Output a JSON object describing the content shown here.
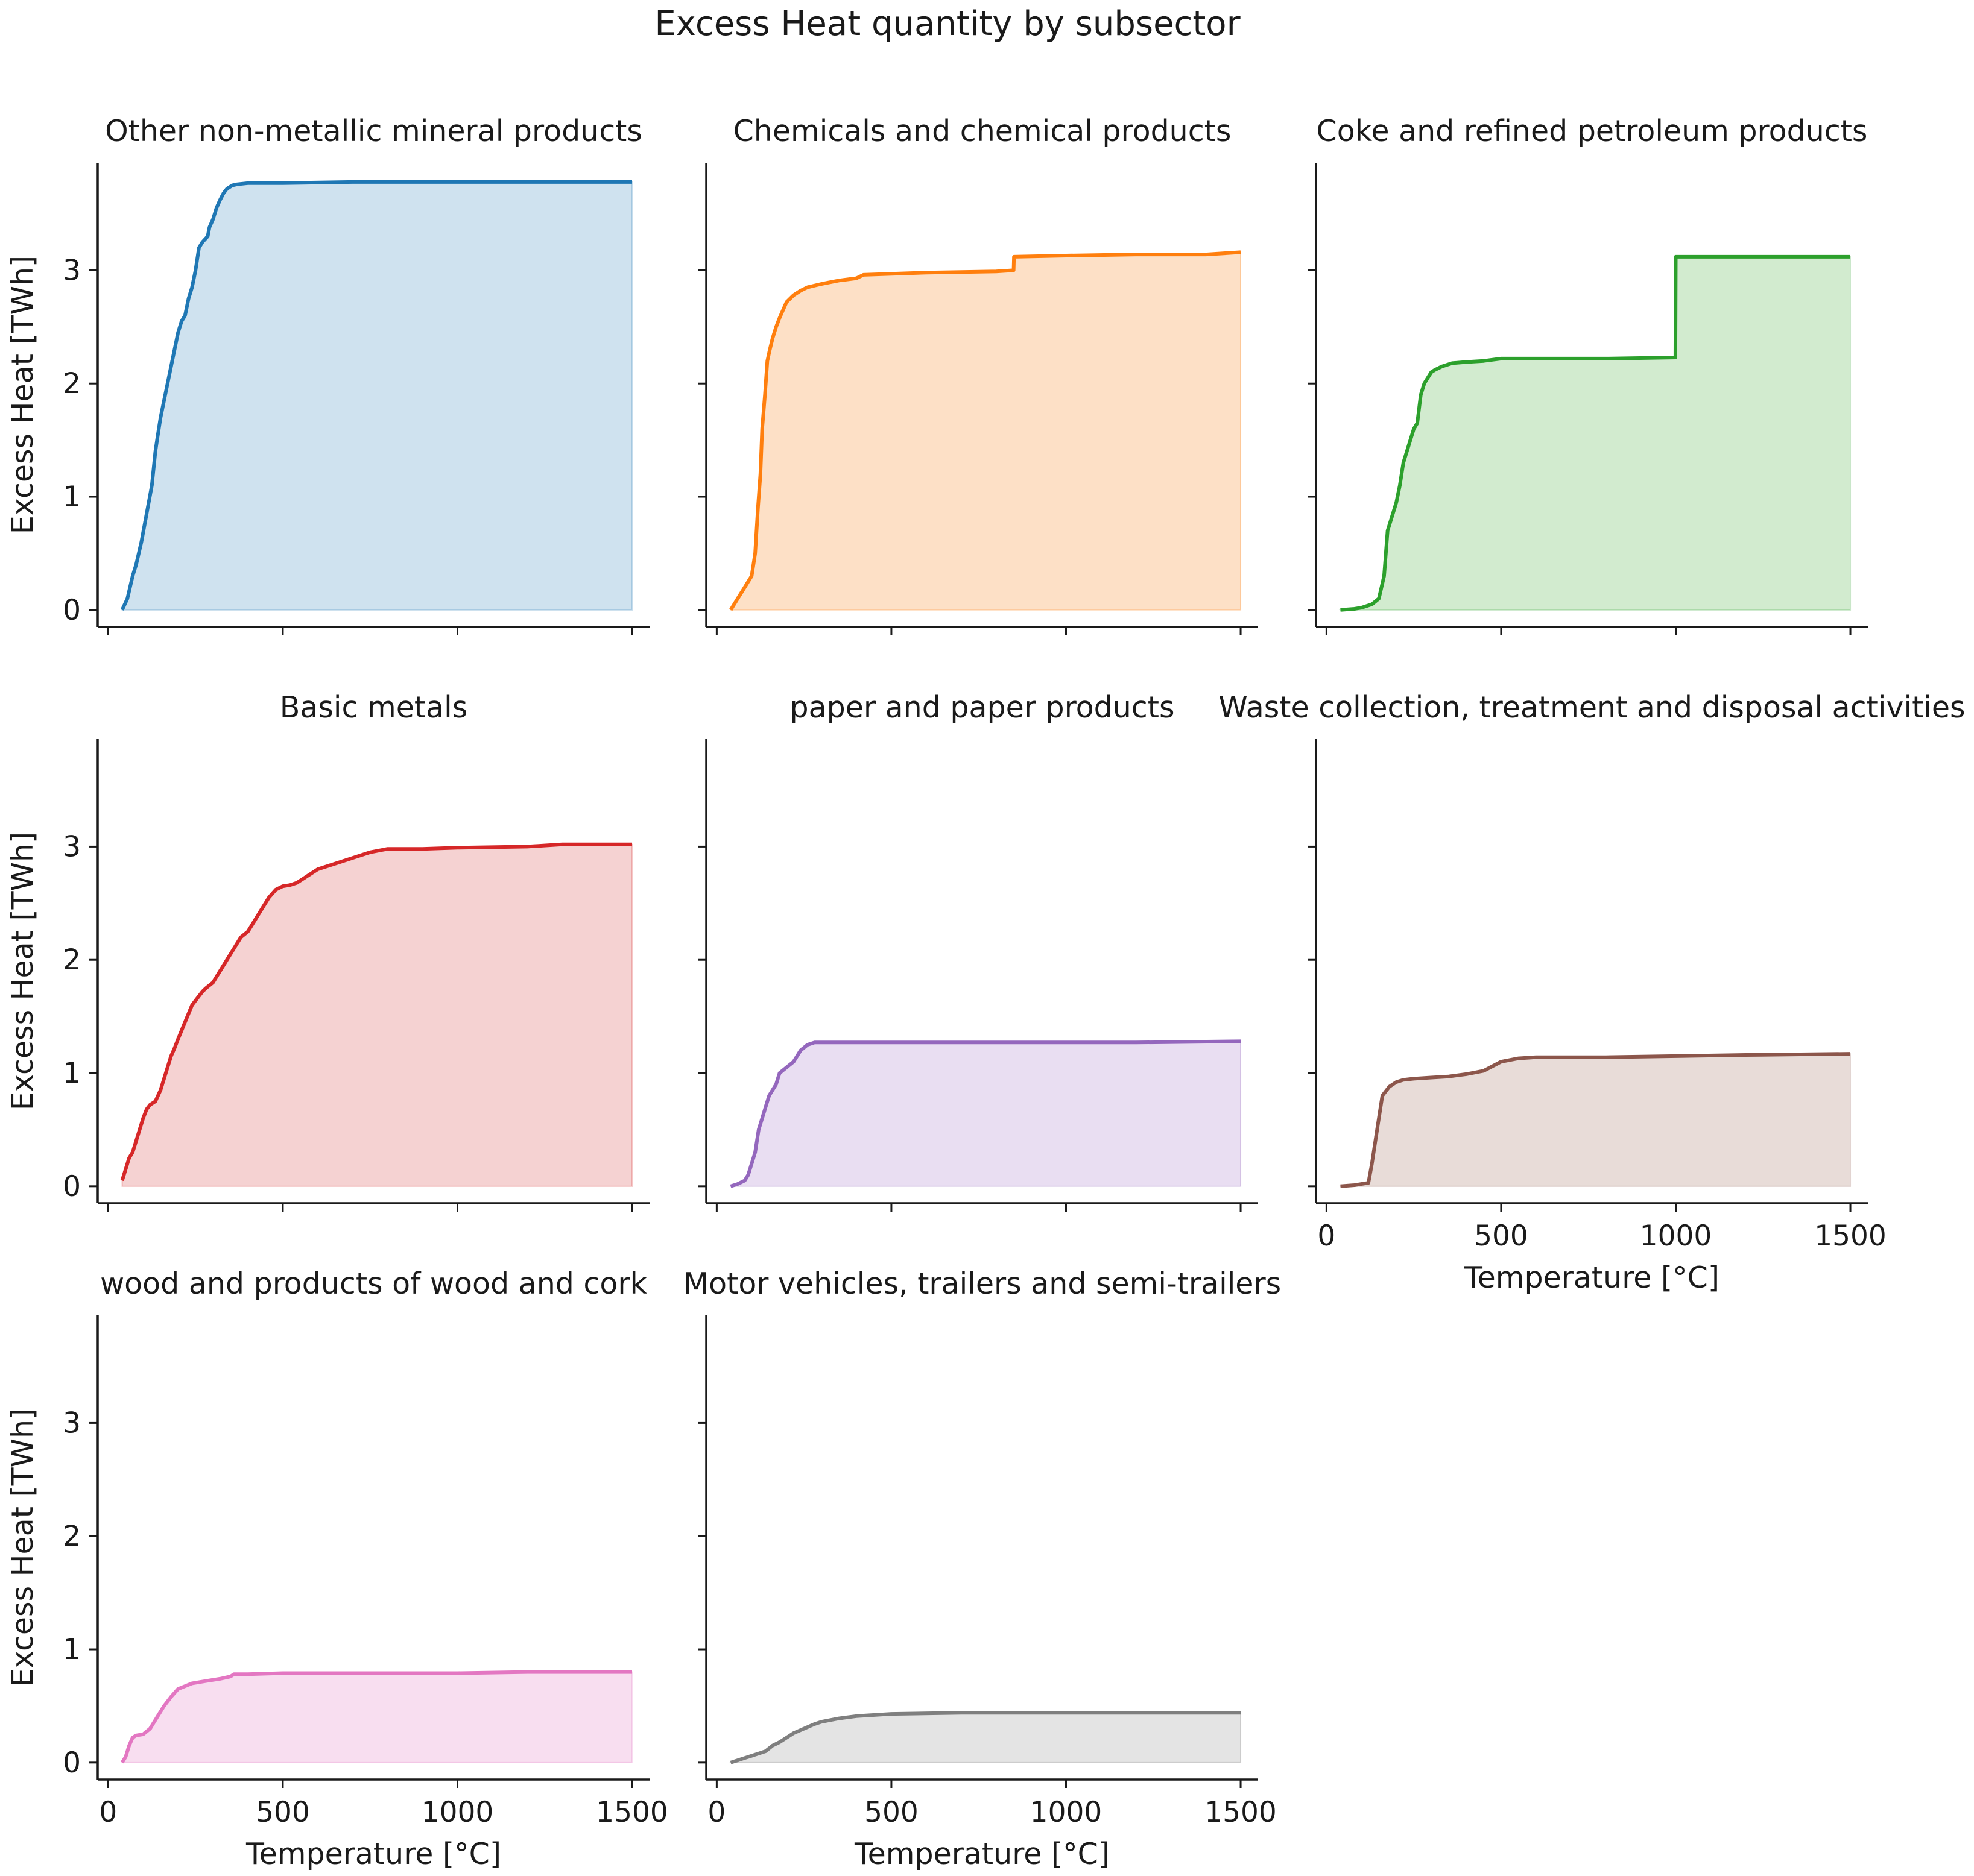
{
  "figure_title": "Excess Heat quantity by subsector",
  "chart_data": [
    {
      "type": "area",
      "title": "Other non-metallic mineral products",
      "color": "#1f77b4",
      "fill": "#cfe2ef",
      "xlabel": "",
      "ylabel": "Excess Heat [TWh]",
      "xlim": [
        -30,
        1550
      ],
      "ylim": [
        -0.15,
        3.95
      ],
      "xticks": [
        0,
        500,
        1000,
        1500
      ],
      "yticks": [
        0,
        1,
        2,
        3
      ],
      "show_xticklabels": false,
      "show_yticklabels": true,
      "x": [
        40,
        55,
        70,
        80,
        95,
        110,
        125,
        135,
        140,
        150,
        160,
        170,
        180,
        190,
        200,
        210,
        220,
        230,
        240,
        250,
        260,
        270,
        285,
        290,
        300,
        310,
        320,
        330,
        340,
        355,
        370,
        400,
        500,
        700,
        1000,
        1500
      ],
      "y": [
        0.0,
        0.1,
        0.3,
        0.4,
        0.6,
        0.85,
        1.1,
        1.4,
        1.5,
        1.7,
        1.85,
        2.0,
        2.15,
        2.3,
        2.45,
        2.55,
        2.6,
        2.75,
        2.85,
        3.0,
        3.2,
        3.25,
        3.3,
        3.38,
        3.45,
        3.55,
        3.62,
        3.68,
        3.72,
        3.75,
        3.76,
        3.77,
        3.77,
        3.78,
        3.78,
        3.78
      ]
    },
    {
      "type": "area",
      "title": "Chemicals and chemical products",
      "color": "#ff7f0e",
      "fill": "#fde0c6",
      "xlabel": "",
      "ylabel": "",
      "xlim": [
        -30,
        1550
      ],
      "ylim": [
        -0.15,
        3.95
      ],
      "xticks": [
        0,
        500,
        1000,
        1500
      ],
      "yticks": [
        0,
        1,
        2,
        3
      ],
      "show_xticklabels": false,
      "show_yticklabels": false,
      "x": [
        40,
        60,
        80,
        100,
        110,
        118,
        125,
        130,
        138,
        145,
        152,
        160,
        170,
        180,
        190,
        200,
        220,
        240,
        260,
        300,
        350,
        400,
        420,
        600,
        800,
        850,
        851,
        1000,
        1200,
        1400,
        1500
      ],
      "y": [
        0.0,
        0.1,
        0.2,
        0.3,
        0.5,
        0.9,
        1.2,
        1.6,
        1.9,
        2.2,
        2.3,
        2.4,
        2.5,
        2.58,
        2.65,
        2.72,
        2.78,
        2.82,
        2.85,
        2.88,
        2.91,
        2.93,
        2.96,
        2.98,
        2.99,
        3.0,
        3.12,
        3.13,
        3.14,
        3.14,
        3.16
      ]
    },
    {
      "type": "area",
      "title": "Coke and refined petroleum products",
      "color": "#2ca02c",
      "fill": "#d2ebcf",
      "xlabel": "",
      "ylabel": "",
      "xlim": [
        -30,
        1550
      ],
      "ylim": [
        -0.15,
        3.95
      ],
      "xticks": [
        0,
        500,
        1000,
        1500
      ],
      "yticks": [
        0,
        1,
        2,
        3
      ],
      "show_xticklabels": false,
      "show_yticklabels": false,
      "x": [
        40,
        80,
        100,
        130,
        150,
        165,
        175,
        190,
        200,
        210,
        220,
        235,
        250,
        260,
        270,
        280,
        290,
        300,
        310,
        330,
        360,
        400,
        450,
        500,
        600,
        800,
        999,
        1000,
        1200,
        1500
      ],
      "y": [
        0.0,
        0.01,
        0.02,
        0.05,
        0.1,
        0.3,
        0.7,
        0.85,
        0.95,
        1.1,
        1.3,
        1.45,
        1.6,
        1.65,
        1.9,
        2.0,
        2.05,
        2.1,
        2.12,
        2.15,
        2.18,
        2.19,
        2.2,
        2.22,
        2.22,
        2.22,
        2.23,
        3.12,
        3.12,
        3.12
      ]
    },
    {
      "type": "area",
      "title": "Basic metals",
      "color": "#d62728",
      "fill": "#f5d2d2",
      "xlabel": "",
      "ylabel": "Excess Heat [TWh]",
      "xlim": [
        -30,
        1550
      ],
      "ylim": [
        -0.15,
        3.95
      ],
      "xticks": [
        0,
        500,
        1000,
        1500
      ],
      "yticks": [
        0,
        1,
        2,
        3
      ],
      "show_xticklabels": false,
      "show_yticklabels": true,
      "x": [
        40,
        50,
        60,
        70,
        80,
        90,
        100,
        110,
        120,
        135,
        150,
        160,
        170,
        180,
        190,
        200,
        220,
        240,
        260,
        270,
        280,
        300,
        320,
        340,
        360,
        380,
        400,
        420,
        440,
        460,
        480,
        500,
        520,
        540,
        560,
        580,
        600,
        650,
        700,
        750,
        800,
        900,
        1000,
        1200,
        1300,
        1500
      ],
      "y": [
        0.05,
        0.15,
        0.25,
        0.3,
        0.4,
        0.5,
        0.6,
        0.68,
        0.72,
        0.75,
        0.85,
        0.95,
        1.05,
        1.15,
        1.22,
        1.3,
        1.45,
        1.6,
        1.68,
        1.72,
        1.75,
        1.8,
        1.9,
        2.0,
        2.1,
        2.2,
        2.25,
        2.35,
        2.45,
        2.55,
        2.62,
        2.65,
        2.66,
        2.68,
        2.72,
        2.76,
        2.8,
        2.85,
        2.9,
        2.95,
        2.98,
        2.98,
        2.99,
        3.0,
        3.02,
        3.02
      ]
    },
    {
      "type": "area",
      "title": "paper and paper products",
      "color": "#9467bd",
      "fill": "#e9def2",
      "xlabel": "",
      "ylabel": "",
      "xlim": [
        -30,
        1550
      ],
      "ylim": [
        -0.15,
        3.95
      ],
      "xticks": [
        0,
        500,
        1000,
        1500
      ],
      "yticks": [
        0,
        1,
        2,
        3
      ],
      "show_xticklabels": false,
      "show_yticklabels": false,
      "x": [
        40,
        60,
        80,
        90,
        100,
        110,
        120,
        130,
        140,
        150,
        160,
        170,
        180,
        200,
        220,
        240,
        260,
        280,
        300,
        400,
        600,
        800,
        1000,
        1200,
        1500
      ],
      "y": [
        0.0,
        0.02,
        0.05,
        0.1,
        0.2,
        0.3,
        0.5,
        0.6,
        0.7,
        0.8,
        0.85,
        0.9,
        1.0,
        1.05,
        1.1,
        1.2,
        1.25,
        1.27,
        1.27,
        1.27,
        1.27,
        1.27,
        1.27,
        1.27,
        1.28
      ]
    },
    {
      "type": "area",
      "title": "Waste collection, treatment and disposal activities",
      "color": "#8c564b",
      "fill": "#e8dcd8",
      "xlabel": "Temperature [°C]",
      "ylabel": "",
      "xlim": [
        -30,
        1550
      ],
      "ylim": [
        -0.15,
        3.95
      ],
      "xticks": [
        0,
        500,
        1000,
        1500
      ],
      "yticks": [
        0,
        1,
        2,
        3
      ],
      "xticklabels": [
        "0",
        "500",
        "1000",
        "1500"
      ],
      "show_xticklabels": true,
      "show_yticklabels": false,
      "x": [
        40,
        80,
        100,
        120,
        130,
        145,
        160,
        180,
        200,
        220,
        250,
        300,
        350,
        400,
        450,
        500,
        550,
        600,
        700,
        800,
        1000,
        1200,
        1500
      ],
      "y": [
        0.0,
        0.01,
        0.02,
        0.03,
        0.2,
        0.5,
        0.8,
        0.88,
        0.92,
        0.94,
        0.95,
        0.96,
        0.97,
        0.99,
        1.02,
        1.1,
        1.13,
        1.14,
        1.14,
        1.14,
        1.15,
        1.16,
        1.17
      ]
    },
    {
      "type": "area",
      "title": "wood and products of wood and cork",
      "color": "#e377c2",
      "fill": "#f8def0",
      "xlabel": "Temperature [°C]",
      "ylabel": "Excess Heat [TWh]",
      "xlim": [
        -30,
        1550
      ],
      "ylim": [
        -0.15,
        3.95
      ],
      "xticks": [
        0,
        500,
        1000,
        1500
      ],
      "yticks": [
        0,
        1,
        2,
        3
      ],
      "xticklabels": [
        "0",
        "500",
        "1000",
        "1500"
      ],
      "show_xticklabels": true,
      "show_yticklabels": true,
      "x": [
        40,
        50,
        60,
        70,
        80,
        100,
        120,
        140,
        160,
        180,
        200,
        240,
        280,
        320,
        350,
        360,
        400,
        500,
        700,
        1000,
        1200,
        1500
      ],
      "y": [
        0.0,
        0.05,
        0.15,
        0.22,
        0.24,
        0.25,
        0.3,
        0.4,
        0.5,
        0.58,
        0.65,
        0.7,
        0.72,
        0.74,
        0.76,
        0.78,
        0.78,
        0.79,
        0.79,
        0.79,
        0.8,
        0.8
      ]
    },
    {
      "type": "area",
      "title": "Motor vehicles, trailers and semi-trailers",
      "color": "#7f7f7f",
      "fill": "#e4e4e4",
      "xlabel": "Temperature [°C]",
      "ylabel": "",
      "xlim": [
        -30,
        1550
      ],
      "ylim": [
        -0.15,
        3.95
      ],
      "xticks": [
        0,
        500,
        1000,
        1500
      ],
      "yticks": [
        0,
        1,
        2,
        3
      ],
      "xticklabels": [
        "0",
        "500",
        "1000",
        "1500"
      ],
      "show_xticklabels": true,
      "show_yticklabels": false,
      "x": [
        40,
        60,
        80,
        100,
        120,
        140,
        160,
        180,
        200,
        220,
        250,
        280,
        300,
        350,
        400,
        500,
        700,
        1000,
        1200,
        1500
      ],
      "y": [
        0.0,
        0.02,
        0.04,
        0.06,
        0.08,
        0.1,
        0.15,
        0.18,
        0.22,
        0.26,
        0.3,
        0.34,
        0.36,
        0.39,
        0.41,
        0.43,
        0.44,
        0.44,
        0.44,
        0.44
      ]
    }
  ]
}
